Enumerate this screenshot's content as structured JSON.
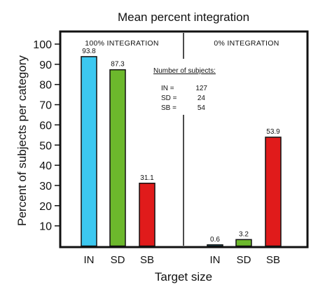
{
  "chart_data": {
    "type": "bar",
    "title": "Mean percent integration",
    "xlabel": "Target size",
    "ylabel": "Percent of subjects per category",
    "ylim": [
      0,
      100
    ],
    "yticks": [
      "10",
      "20",
      "30",
      "40",
      "50",
      "60",
      "70",
      "80",
      "90",
      "100"
    ],
    "grid": false,
    "panels": [
      {
        "label": "100% INTEGRATION",
        "categories": [
          "IN",
          "SD",
          "SB"
        ],
        "values": [
          93.8,
          87.3,
          31.1
        ],
        "value_labels": [
          "93.8",
          "87.3",
          "31.1"
        ],
        "colors": [
          "#3cc8f0",
          "#6cb82c",
          "#e01b1b"
        ]
      },
      {
        "label": "0% INTEGRATION",
        "categories": [
          "IN",
          "SD",
          "SB"
        ],
        "values": [
          0.6,
          3.2,
          53.9
        ],
        "value_labels": [
          "0.6",
          "3.2",
          "53.9"
        ],
        "colors": [
          "#3cc8f0",
          "#6cb82c",
          "#e01b1b"
        ]
      }
    ],
    "subjects": {
      "heading": "Number of subjects:",
      "rows": [
        {
          "label": "IN =",
          "value": "127"
        },
        {
          "label": "SD =",
          "value": "24"
        },
        {
          "label": "SB =",
          "value": "54"
        }
      ]
    }
  }
}
